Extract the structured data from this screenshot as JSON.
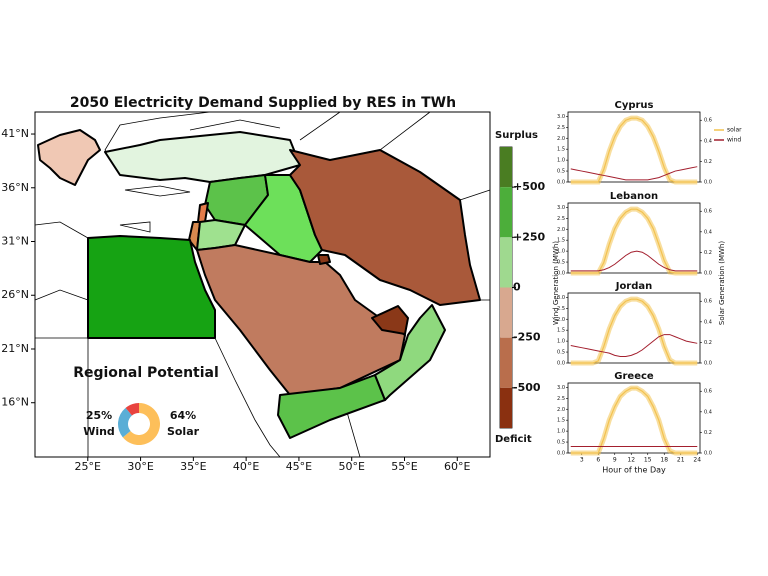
{
  "chart_data": [
    {
      "type": "map",
      "title": "2050 Electricity Demand Supplied by RES in TWh",
      "xlim": [
        20,
        63.1
      ],
      "ylim": [
        10.95,
        43.05
      ],
      "xticks": [
        {
          "value": 25,
          "label": "25°E"
        },
        {
          "value": 30,
          "label": "30°E"
        },
        {
          "value": 35,
          "label": "35°E"
        },
        {
          "value": 40,
          "label": "40°E"
        },
        {
          "value": 45,
          "label": "45°E"
        },
        {
          "value": 50,
          "label": "50°E"
        },
        {
          "value": 55,
          "label": "55°E"
        },
        {
          "value": 60,
          "label": "60°E"
        }
      ],
      "yticks": [
        {
          "value": 16,
          "label": "16°N"
        },
        {
          "value": 21,
          "label": "21°N"
        },
        {
          "value": 26,
          "label": "26°N"
        },
        {
          "value": 31,
          "label": "31°N"
        },
        {
          "value": 36,
          "label": "36°N"
        },
        {
          "value": 41,
          "label": "41°N"
        }
      ],
      "colorbar_top_label": "Surplus",
      "colorbar_bottom_label": "Deficit",
      "colorbar_lim": [
        -700,
        700
      ],
      "colorbar_ticks": [
        {
          "value": 500,
          "label": "+500"
        },
        {
          "value": 250,
          "label": "+250"
        },
        0,
        -250,
        -500
      ],
      "colorbar_colors": [
        "#4a7d22",
        "#4cae3a",
        "#9fd98f",
        "#d8a88f",
        "#b96e4c",
        "#8a3010"
      ]
    },
    {
      "type": "donut",
      "title": "Regional Potential",
      "categories": [
        "Solar",
        "Wind",
        null
      ],
      "values": [
        64,
        25,
        11
      ],
      "value_labels": [
        "64%",
        "25%",
        null
      ],
      "colors": [
        "#fdbf5a",
        "#5aaed6",
        "#e8433f"
      ]
    },
    {
      "type": "line",
      "title": "Cyprus",
      "legend": "upper right",
      "ylabel": "Wind Generation (MWh)",
      "y2label": "Solar Generation (MWh)",
      "x": [
        1,
        2,
        3,
        4,
        5,
        6,
        7,
        8,
        9,
        10,
        11,
        12,
        13,
        14,
        15,
        16,
        17,
        18,
        19,
        20,
        21,
        22,
        23,
        24
      ],
      "xlim": [
        0.5,
        24.5
      ],
      "ylim": [
        0,
        3.2
      ],
      "yticks": [
        {
          "value": 0,
          "label": "0.0"
        },
        {
          "value": 0.5,
          "label": "0.5"
        },
        {
          "value": 1,
          "label": "1.0"
        },
        {
          "value": 1.5,
          "label": "1.5"
        },
        {
          "value": 2,
          "label": "2.0"
        },
        {
          "value": 2.5,
          "label": "2.5"
        },
        {
          "value": 3,
          "label": "3.0"
        }
      ],
      "y2lim": [
        0,
        0.68
      ],
      "y2ticks": [
        {
          "value": 0,
          "label": "0.0"
        },
        0.2,
        0.4,
        0.6
      ],
      "series": [
        {
          "name": "solar",
          "color": "#f3c24f",
          "axis": "y2",
          "values": [
            0,
            0,
            0,
            0,
            0,
            0,
            0.12,
            0.3,
            0.44,
            0.54,
            0.6,
            0.62,
            0.62,
            0.6,
            0.54,
            0.44,
            0.3,
            0.14,
            0.02,
            0,
            0,
            0,
            0,
            0
          ]
        },
        {
          "name": "wind",
          "color": "#a31f2e",
          "values": [
            0.6,
            0.55,
            0.5,
            0.45,
            0.4,
            0.35,
            0.3,
            0.25,
            0.2,
            0.15,
            0.1,
            0.1,
            0.1,
            0.1,
            0.1,
            0.15,
            0.2,
            0.3,
            0.4,
            0.5,
            0.55,
            0.6,
            0.65,
            0.7
          ]
        }
      ]
    },
    {
      "type": "line",
      "title": "Lebanon",
      "x": [
        1,
        2,
        3,
        4,
        5,
        6,
        7,
        8,
        9,
        10,
        11,
        12,
        13,
        14,
        15,
        16,
        17,
        18,
        19,
        20,
        21,
        22,
        23,
        24
      ],
      "xlim": [
        0.5,
        24.5
      ],
      "ylim": [
        0,
        3.2
      ],
      "yticks": [
        {
          "value": 0,
          "label": "0.0"
        },
        {
          "value": 0.5,
          "label": "0.5"
        },
        {
          "value": 1,
          "label": "1.0"
        },
        {
          "value": 1.5,
          "label": "1.5"
        },
        {
          "value": 2,
          "label": "2.0"
        },
        {
          "value": 2.5,
          "label": "2.5"
        },
        {
          "value": 3,
          "label": "3.0"
        }
      ],
      "y2lim": [
        0,
        0.68
      ],
      "y2ticks": [
        {
          "value": 0,
          "label": "0.0"
        },
        0.2,
        0.4,
        0.6
      ],
      "series": [
        {
          "color": "#f3c24f",
          "axis": "y2",
          "values": [
            0,
            0,
            0,
            0,
            0,
            0,
            0.1,
            0.28,
            0.43,
            0.53,
            0.59,
            0.62,
            0.62,
            0.59,
            0.53,
            0.43,
            0.28,
            0.12,
            0.01,
            0,
            0,
            0,
            0,
            0
          ]
        },
        {
          "color": "#a31f2e",
          "values": [
            0.1,
            0.1,
            0.1,
            0.1,
            0.1,
            0.1,
            0.15,
            0.25,
            0.4,
            0.6,
            0.8,
            0.95,
            1.0,
            0.95,
            0.8,
            0.6,
            0.4,
            0.25,
            0.15,
            0.1,
            0.1,
            0.1,
            0.1,
            0.1
          ]
        }
      ]
    },
    {
      "type": "line",
      "title": "Jordan",
      "x": [
        1,
        2,
        3,
        4,
        5,
        6,
        7,
        8,
        9,
        10,
        11,
        12,
        13,
        14,
        15,
        16,
        17,
        18,
        19,
        20,
        21,
        22,
        23,
        24
      ],
      "xlim": [
        0.5,
        24.5
      ],
      "ylim": [
        0,
        3.2
      ],
      "yticks": [
        {
          "value": 0,
          "label": "0.0"
        },
        {
          "value": 0.5,
          "label": "0.5"
        },
        {
          "value": 1,
          "label": "1.0"
        },
        {
          "value": 1.5,
          "label": "1.5"
        },
        {
          "value": 2,
          "label": "2.0"
        },
        {
          "value": 2.5,
          "label": "2.5"
        },
        {
          "value": 3,
          "label": "3.0"
        }
      ],
      "y2lim": [
        0,
        0.68
      ],
      "y2ticks": [
        {
          "value": 0,
          "label": "0.0"
        },
        0.2,
        0.4,
        0.6
      ],
      "series": [
        {
          "color": "#f3c24f",
          "axis": "y2",
          "values": [
            0,
            0,
            0,
            0,
            0,
            0.02,
            0.16,
            0.33,
            0.46,
            0.55,
            0.6,
            0.62,
            0.62,
            0.6,
            0.55,
            0.46,
            0.33,
            0.16,
            0.03,
            0,
            0,
            0,
            0,
            0
          ]
        },
        {
          "color": "#a31f2e",
          "values": [
            0.8,
            0.75,
            0.7,
            0.65,
            0.6,
            0.55,
            0.5,
            0.45,
            0.35,
            0.3,
            0.3,
            0.35,
            0.45,
            0.6,
            0.8,
            1.0,
            1.2,
            1.3,
            1.3,
            1.2,
            1.1,
            1.0,
            0.95,
            0.9
          ]
        }
      ]
    },
    {
      "type": "line",
      "title": "Greece",
      "xlabel": "Hour of the Day",
      "x": [
        1,
        2,
        3,
        4,
        5,
        6,
        7,
        8,
        9,
        10,
        11,
        12,
        13,
        14,
        15,
        16,
        17,
        18,
        19,
        20,
        21,
        22,
        23,
        24
      ],
      "xlim": [
        0.5,
        24.5
      ],
      "xticks": [
        3,
        6,
        9,
        12,
        15,
        18,
        21,
        24
      ],
      "ylim": [
        0,
        3.2
      ],
      "yticks": [
        {
          "value": 0,
          "label": "0.0"
        },
        {
          "value": 0.5,
          "label": "0.5"
        },
        {
          "value": 1,
          "label": "1.0"
        },
        {
          "value": 1.5,
          "label": "1.5"
        },
        {
          "value": 2,
          "label": "2.0"
        },
        {
          "value": 2.5,
          "label": "2.5"
        },
        {
          "value": 3,
          "label": "3.0"
        }
      ],
      "y2lim": [
        0,
        0.68
      ],
      "y2ticks": [
        {
          "value": 0,
          "label": "0.0"
        },
        0.2,
        0.4,
        0.6
      ],
      "series": [
        {
          "color": "#f3c24f",
          "axis": "y2",
          "values": [
            0,
            0,
            0,
            0,
            0,
            0,
            0.14,
            0.32,
            0.45,
            0.55,
            0.6,
            0.63,
            0.63,
            0.6,
            0.55,
            0.45,
            0.32,
            0.14,
            0.02,
            0,
            0,
            0,
            0,
            0
          ]
        },
        {
          "color": "#a31f2e",
          "values": [
            0.3,
            0.3,
            0.3,
            0.3,
            0.3,
            0.3,
            0.3,
            0.3,
            0.3,
            0.3,
            0.3,
            0.3,
            0.3,
            0.3,
            0.3,
            0.3,
            0.3,
            0.3,
            0.3,
            0.3,
            0.3,
            0.3,
            0.3,
            0.3
          ]
        }
      ]
    }
  ]
}
